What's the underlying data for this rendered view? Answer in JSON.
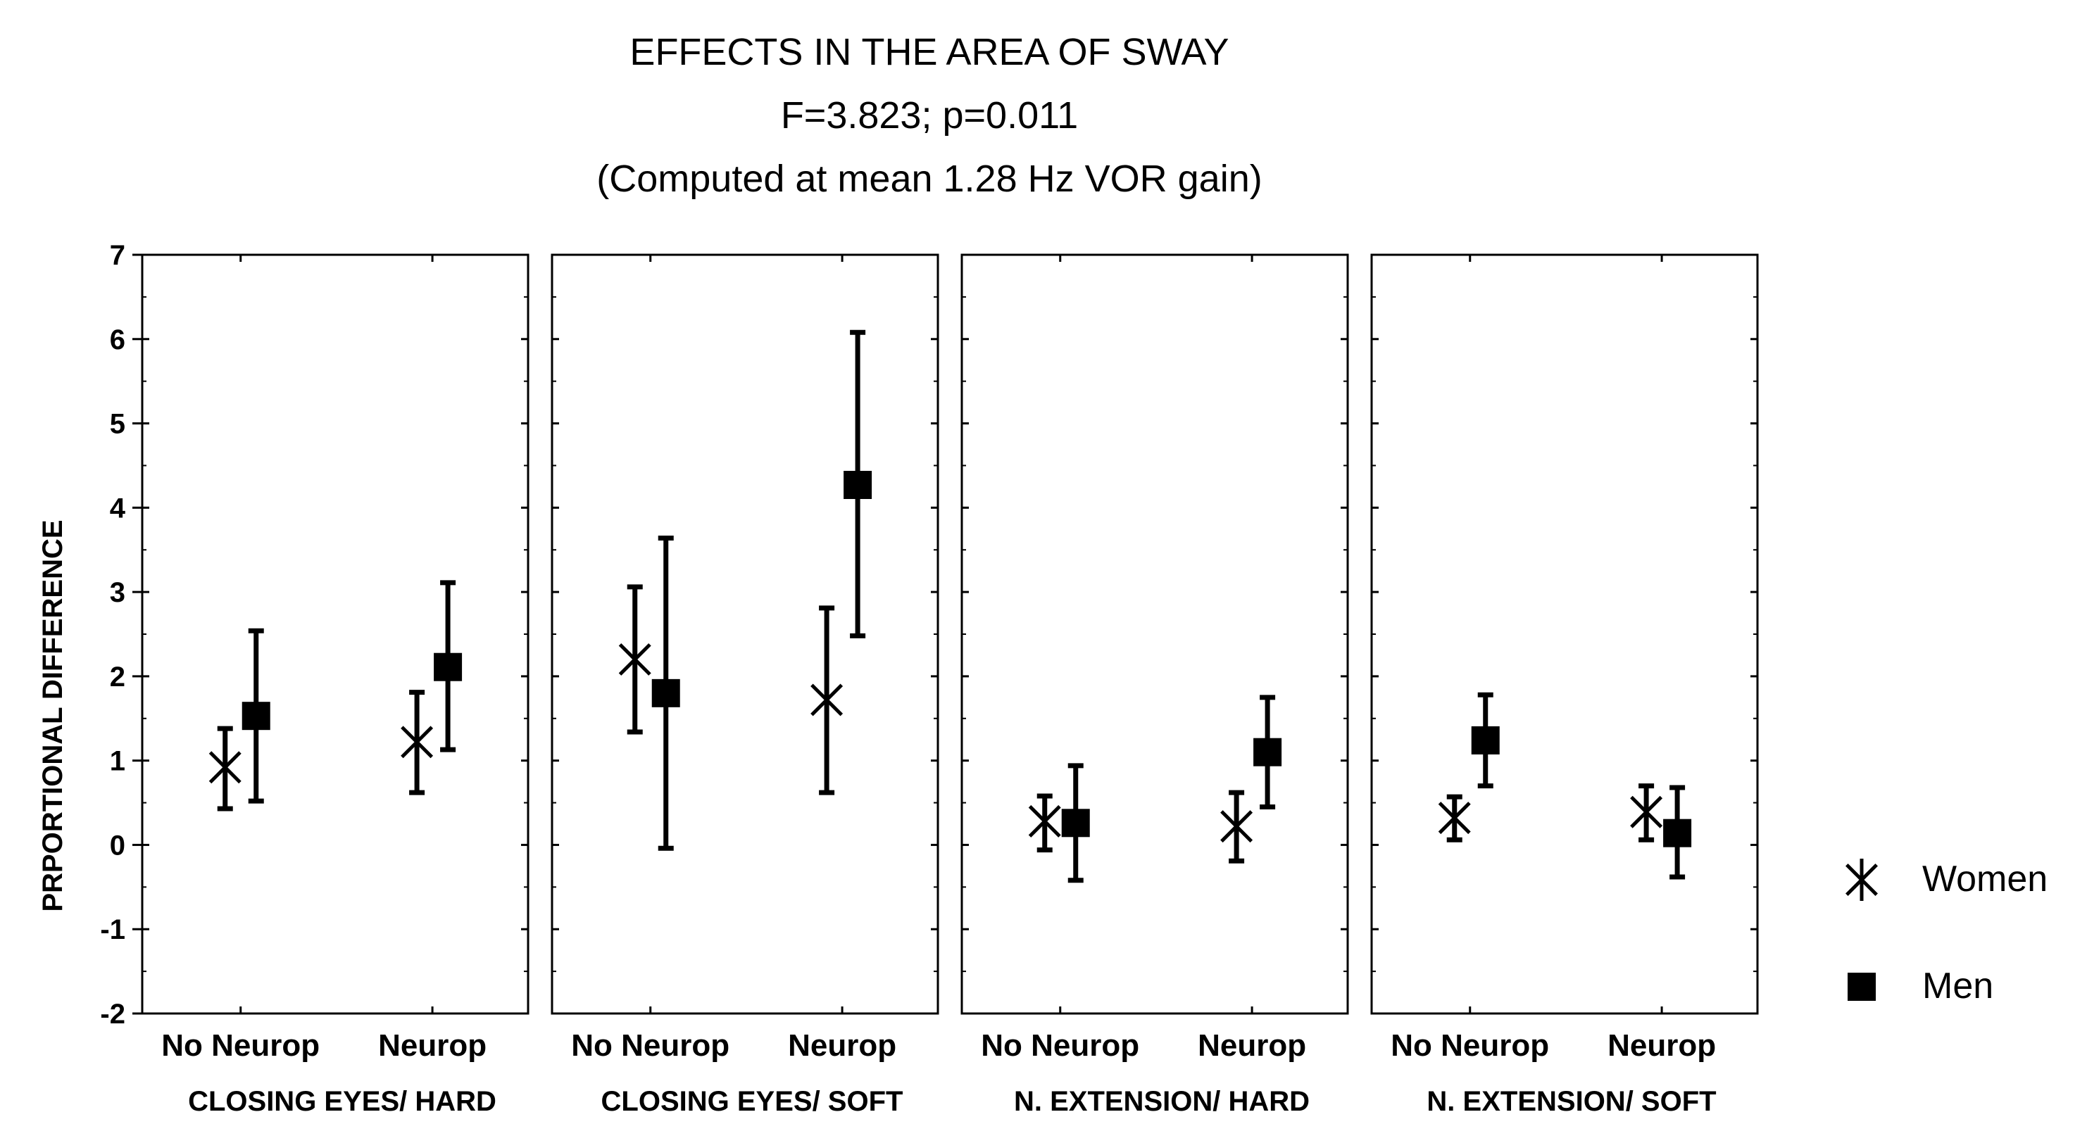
{
  "chart_data": {
    "type": "scatter",
    "subtype": "means-with-error-bars",
    "title": "EFFECTS IN THE AREA OF SWAY",
    "subtitle": "F=3.823; p=0.011",
    "note": "(Computed at mean 1.28 Hz VOR gain)",
    "ylabel": "PRPORTIONAL DIFFERENCE",
    "ylim": [
      -2,
      7
    ],
    "yticks": [
      "7",
      "6",
      "5",
      "4",
      "3",
      "2",
      "1",
      "0",
      "-1",
      "-2"
    ],
    "grid": false,
    "legend_position": "right",
    "legend": [
      {
        "name": "Women",
        "marker": "asterisk"
      },
      {
        "name": "Men",
        "marker": "square"
      }
    ],
    "panels": [
      {
        "title": "CLOSING EYES/ HARD",
        "categories": [
          "No Neurop",
          "Neurop"
        ],
        "series": [
          {
            "name": "Women",
            "means": [
              0.92,
              1.22
            ],
            "lower": [
              0.43,
              0.62
            ],
            "upper": [
              1.38,
              1.81
            ]
          },
          {
            "name": "Men",
            "means": [
              1.53,
              2.11
            ],
            "lower": [
              0.52,
              1.13
            ],
            "upper": [
              2.54,
              3.11
            ]
          }
        ]
      },
      {
        "title": "CLOSING EYES/ SOFT",
        "categories": [
          "No Neurop",
          "Neurop"
        ],
        "series": [
          {
            "name": "Women",
            "means": [
              2.2,
              1.72
            ],
            "lower": [
              1.34,
              0.62
            ],
            "upper": [
              3.06,
              2.81
            ]
          },
          {
            "name": "Men",
            "means": [
              1.8,
              4.27
            ],
            "lower": [
              -0.04,
              2.48
            ],
            "upper": [
              3.64,
              6.08
            ]
          }
        ]
      },
      {
        "title": "N. EXTENSION/ HARD",
        "categories": [
          "No Neurop",
          "Neurop"
        ],
        "series": [
          {
            "name": "Women",
            "means": [
              0.28,
              0.22
            ],
            "lower": [
              -0.06,
              -0.19
            ],
            "upper": [
              0.58,
              0.62
            ]
          },
          {
            "name": "Men",
            "means": [
              0.26,
              1.1
            ],
            "lower": [
              -0.42,
              0.45
            ],
            "upper": [
              0.94,
              1.75
            ]
          }
        ]
      },
      {
        "title": "N. EXTENSION/ SOFT",
        "categories": [
          "No Neurop",
          "Neurop"
        ],
        "series": [
          {
            "name": "Women",
            "means": [
              0.32,
              0.39
            ],
            "lower": [
              0.06,
              0.06
            ],
            "upper": [
              0.57,
              0.7
            ]
          },
          {
            "name": "Men",
            "means": [
              1.24,
              0.14
            ],
            "lower": [
              0.7,
              -0.38
            ],
            "upper": [
              1.78,
              0.68
            ]
          }
        ]
      }
    ]
  }
}
